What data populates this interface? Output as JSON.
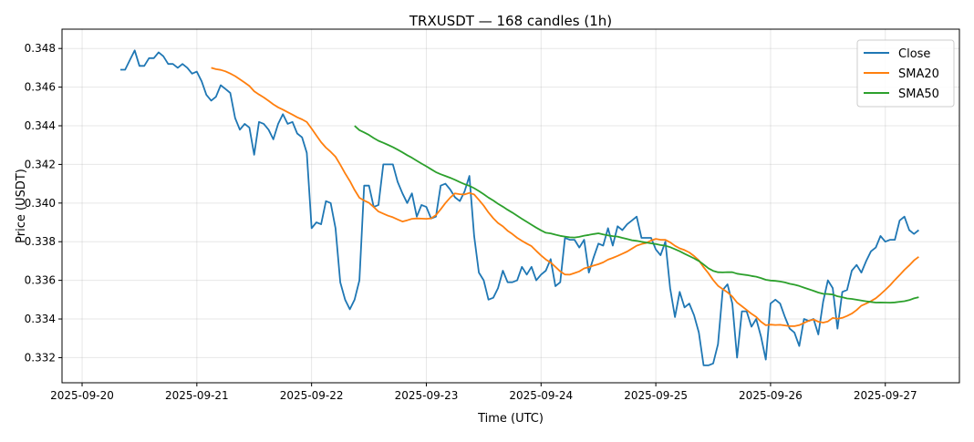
{
  "chart_data": {
    "type": "line",
    "title": "TRXUSDT — 168 candles (1h)",
    "xlabel": "Time (UTC)",
    "ylabel": "Price (USDT)",
    "start_time": "2025-09-20 08:00",
    "interval_hours": 1,
    "x_ticks": [
      "2025-09-20",
      "2025-09-21",
      "2025-09-22",
      "2025-09-23",
      "2025-09-24",
      "2025-09-25",
      "2025-09-26",
      "2025-09-27"
    ],
    "y_ticks": [
      "0.332",
      "0.334",
      "0.336",
      "0.338",
      "0.340",
      "0.342",
      "0.344",
      "0.346",
      "0.348"
    ],
    "ylim": [
      0.3307,
      0.349
    ],
    "xlim_hours_from_first_tick": [
      -4.2,
      183.5
    ],
    "grid": true,
    "legend_position": "top-right",
    "series": [
      {
        "name": "Close",
        "color": "#1f77b4",
        "values": [
          0.3469,
          0.3469,
          0.3474,
          0.3479,
          0.3471,
          0.3471,
          0.3475,
          0.3475,
          0.3478,
          0.3476,
          0.3472,
          0.3472,
          0.347,
          0.3472,
          0.347,
          0.3467,
          0.3468,
          0.3463,
          0.3456,
          0.3453,
          0.3455,
          0.3461,
          0.3459,
          0.3457,
          0.3444,
          0.3438,
          0.3441,
          0.3439,
          0.3425,
          0.3442,
          0.3441,
          0.3438,
          0.3433,
          0.3441,
          0.3446,
          0.3441,
          0.3442,
          0.3436,
          0.3434,
          0.3426,
          0.3387,
          0.339,
          0.3389,
          0.3401,
          0.34,
          0.3387,
          0.3359,
          0.335,
          0.3345,
          0.335,
          0.336,
          0.3409,
          0.3409,
          0.3398,
          0.3399,
          0.342,
          0.342,
          0.342,
          0.3411,
          0.3405,
          0.34,
          0.3405,
          0.3393,
          0.3399,
          0.3398,
          0.3392,
          0.3393,
          0.3409,
          0.341,
          0.3407,
          0.3403,
          0.3401,
          0.3406,
          0.3414,
          0.3383,
          0.3364,
          0.336,
          0.335,
          0.3351,
          0.3356,
          0.3365,
          0.3359,
          0.3359,
          0.336,
          0.3367,
          0.3363,
          0.3367,
          0.336,
          0.3363,
          0.3365,
          0.3371,
          0.3357,
          0.3359,
          0.3382,
          0.3381,
          0.3381,
          0.3377,
          0.3381,
          0.3364,
          0.3372,
          0.3379,
          0.3378,
          0.3387,
          0.3378,
          0.3388,
          0.3386,
          0.3389,
          0.3391,
          0.3393,
          0.3382,
          0.3382,
          0.3382,
          0.3376,
          0.3373,
          0.338,
          0.3356,
          0.3341,
          0.3354,
          0.3346,
          0.3348,
          0.3342,
          0.3333,
          0.3316,
          0.3316,
          0.3317,
          0.3327,
          0.3355,
          0.3358,
          0.3348,
          0.332,
          0.3344,
          0.3344,
          0.3336,
          0.334,
          0.3331,
          0.3319,
          0.3348,
          0.335,
          0.3348,
          0.3341,
          0.3335,
          0.3333,
          0.3326,
          0.334,
          0.3339,
          0.334,
          0.3332,
          0.3349,
          0.336,
          0.3356,
          0.3335,
          0.3354,
          0.3355,
          0.3365,
          0.3368,
          0.3364,
          0.337,
          0.3375,
          0.3377,
          0.3383,
          0.338,
          0.3381,
          0.3381,
          0.3391,
          0.3393,
          0.3386,
          0.3384,
          0.3386
        ]
      },
      {
        "name": "SMA20",
        "color": "#ff7f0e",
        "window": 20
      },
      {
        "name": "SMA50",
        "color": "#2ca02c",
        "window": 50
      }
    ]
  }
}
